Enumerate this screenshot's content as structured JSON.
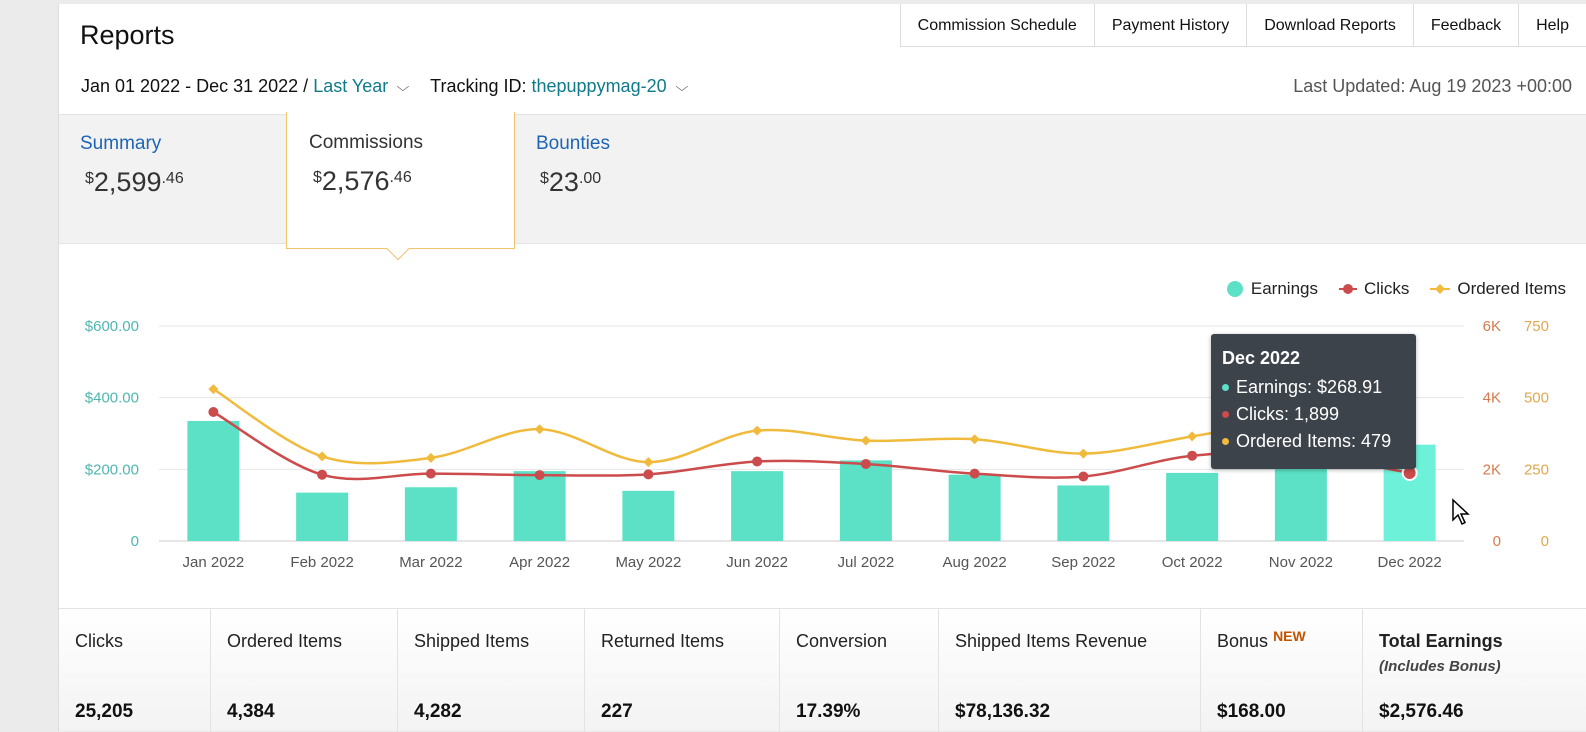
{
  "header": {
    "title": "Reports",
    "nav": [
      "Commission Schedule",
      "Payment History",
      "Download Reports",
      "Feedback",
      "Help"
    ],
    "date_range": "Jan 01 2022 - Dec 31 2022 /",
    "range_preset": "Last Year",
    "tracking_label": "Tracking ID:",
    "tracking_id": "thepuppymag-20",
    "last_updated": "Last Updated: Aug 19 2023 +00:00"
  },
  "tabs": {
    "summary": {
      "label": "Summary",
      "currency": "$",
      "whole": "2,599",
      "cents": ".46"
    },
    "commissions": {
      "label": "Commissions",
      "currency": "$",
      "whole": "2,576",
      "cents": ".46"
    },
    "bounties": {
      "label": "Bounties",
      "currency": "$",
      "whole": "23",
      "cents": ".00"
    }
  },
  "legend": {
    "earnings": "Earnings",
    "clicks": "Clicks",
    "ordered": "Ordered Items"
  },
  "colors": {
    "earnings": "#5ce1c6",
    "clicks": "#cc4b4c",
    "ordered": "#f0bb3c",
    "link": "#0f7a8a",
    "tab": "#1e64b4"
  },
  "chart_data": {
    "type": "bar",
    "categories": [
      "Jan 2022",
      "Feb 2022",
      "Mar 2022",
      "Apr 2022",
      "May 2022",
      "Jun 2022",
      "Jul 2022",
      "Aug 2022",
      "Sep 2022",
      "Oct 2022",
      "Nov 2022",
      "Dec 2022"
    ],
    "series": [
      {
        "name": "Earnings",
        "type": "bar",
        "axis": "left",
        "values": [
          335,
          135,
          150,
          195,
          140,
          195,
          225,
          185,
          155,
          190,
          250,
          268.91
        ]
      },
      {
        "name": "Clicks",
        "type": "line",
        "axis": "right1",
        "values": [
          3600,
          1850,
          1880,
          1840,
          1860,
          2220,
          2150,
          1880,
          1800,
          2380,
          2420,
          1899
        ]
      },
      {
        "name": "Ordered Items",
        "type": "line",
        "axis": "right2",
        "values": [
          530,
          295,
          290,
          390,
          275,
          385,
          350,
          355,
          305,
          365,
          430,
          479
        ]
      }
    ],
    "yaxis_left": {
      "ticks": [
        "0",
        "$200.00",
        "$400.00",
        "$600.00"
      ],
      "range": [
        0,
        600
      ]
    },
    "yaxis_right1": {
      "ticks": [
        "0",
        "2K",
        "4K",
        "6K"
      ],
      "range": [
        0,
        6000
      ]
    },
    "yaxis_right2": {
      "ticks": [
        "0",
        "250",
        "500",
        "750"
      ],
      "range": [
        0,
        750
      ]
    },
    "grid": true,
    "legend_position": "top-right"
  },
  "tooltip": {
    "title": "Dec 2022",
    "earnings": "Earnings: $268.91",
    "clicks": "Clicks: 1,899",
    "ordered": "Ordered Items: 479"
  },
  "stats": [
    {
      "label": "Clicks",
      "value": "25,205"
    },
    {
      "label": "Ordered Items",
      "value": "4,384"
    },
    {
      "label": "Shipped Items",
      "value": "4,282"
    },
    {
      "label": "Returned Items",
      "value": "227"
    },
    {
      "label": "Conversion",
      "value": "17.39%"
    },
    {
      "label": "Shipped Items Revenue",
      "value": "$78,136.32"
    },
    {
      "label": "Bonus",
      "badge": "NEW",
      "value": "$168.00"
    },
    {
      "label": "Total Earnings",
      "sub": "(Includes Bonus)",
      "value": "$2,576.46"
    }
  ]
}
